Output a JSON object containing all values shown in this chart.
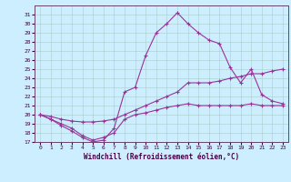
{
  "xlabel": "Windchill (Refroidissement éolien,°C)",
  "bg_color": "#cceeff",
  "line_color": "#993399",
  "xlim": [
    -0.5,
    23.5
  ],
  "ylim": [
    17,
    32
  ],
  "yticks": [
    17,
    18,
    19,
    20,
    21,
    22,
    23,
    24,
    25,
    26,
    27,
    28,
    29,
    30,
    31
  ],
  "xticks": [
    0,
    1,
    2,
    3,
    4,
    5,
    6,
    7,
    8,
    9,
    10,
    11,
    12,
    13,
    14,
    15,
    16,
    17,
    18,
    19,
    20,
    21,
    22,
    23
  ],
  "curve1_x": [
    0,
    1,
    2,
    3,
    4,
    5,
    6,
    7,
    8,
    9,
    10,
    11,
    12,
    13,
    14,
    15,
    16,
    17,
    18,
    19,
    20,
    21,
    22,
    23
  ],
  "curve1_y": [
    20.0,
    19.5,
    19.0,
    18.5,
    17.7,
    17.2,
    17.5,
    18.0,
    19.5,
    20.0,
    20.2,
    20.5,
    20.8,
    21.0,
    21.2,
    21.0,
    21.0,
    21.0,
    21.0,
    21.0,
    21.2,
    21.0,
    21.0,
    21.0
  ],
  "curve2_x": [
    0,
    1,
    2,
    3,
    4,
    5,
    6,
    7,
    8,
    9,
    10,
    11,
    12,
    13,
    14,
    15,
    16,
    17,
    18,
    19,
    20,
    21,
    22,
    23
  ],
  "curve2_y": [
    20.0,
    19.8,
    19.5,
    19.3,
    19.2,
    19.2,
    19.3,
    19.5,
    20.0,
    20.5,
    21.0,
    21.5,
    22.0,
    22.5,
    23.5,
    23.5,
    23.5,
    23.7,
    24.0,
    24.2,
    24.5,
    24.5,
    24.8,
    25.0
  ],
  "curve3_x": [
    0,
    1,
    2,
    3,
    4,
    5,
    6,
    7,
    8,
    9,
    10,
    11,
    12,
    13,
    14,
    15,
    16,
    17,
    18,
    19,
    20,
    21,
    22,
    23
  ],
  "curve3_y": [
    20.0,
    19.5,
    18.8,
    18.2,
    17.5,
    17.0,
    17.2,
    18.5,
    22.5,
    23.0,
    26.5,
    29.0,
    30.0,
    31.2,
    30.0,
    29.0,
    28.2,
    27.8,
    25.2,
    23.5,
    25.0,
    22.2,
    21.5,
    21.2
  ]
}
